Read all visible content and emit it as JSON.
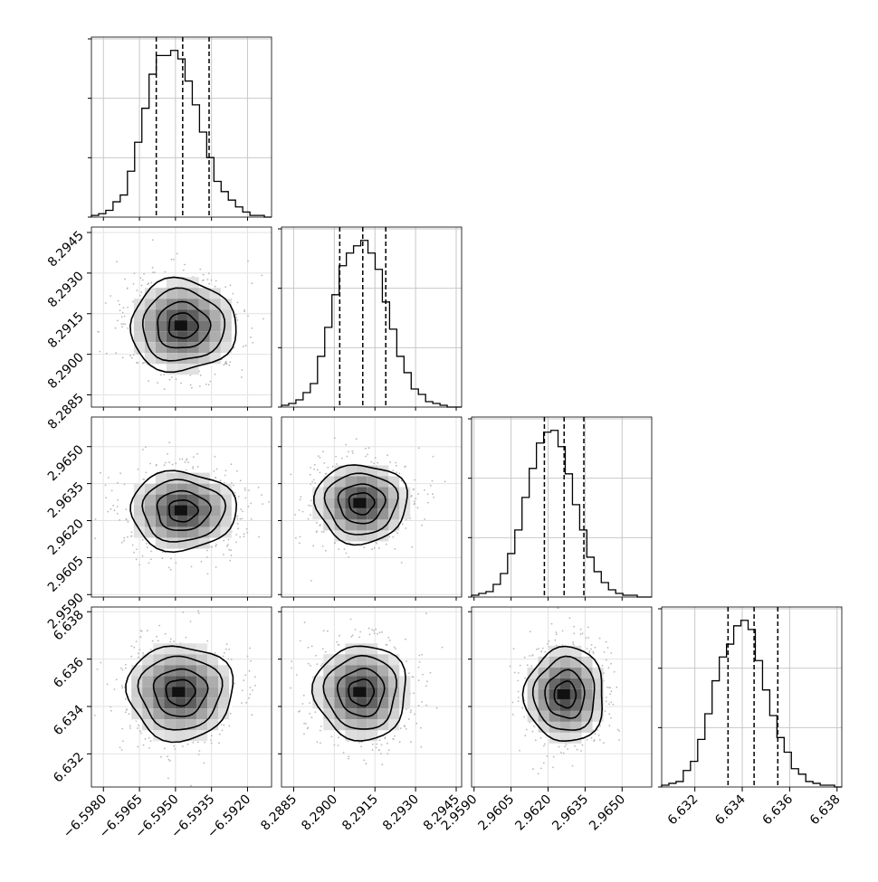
{
  "chart_data": {
    "type": "corner",
    "grid": true,
    "parameters": [
      {
        "range": [
          -6.5985,
          -6.591
        ],
        "ticks": [
          -6.598,
          -6.5965,
          -6.595,
          -6.5935,
          -6.592
        ],
        "tick_labels": [
          "−6.5980",
          "−6.5965",
          "−6.5950",
          "−6.5935",
          "−6.5920"
        ],
        "quantiles": [
          -6.5958,
          -6.5947,
          -6.5936
        ],
        "mean": -6.5947,
        "sd": 0.0011,
        "hist_counts": [
          1,
          2,
          4,
          9,
          13,
          27,
          44,
          64,
          84,
          95,
          95,
          98,
          93,
          80,
          66,
          50,
          35,
          21,
          15,
          10,
          6,
          3,
          1,
          1,
          0
        ]
      },
      {
        "range": [
          8.28805,
          8.2947
        ],
        "ticks": [
          8.2885,
          8.29,
          8.2915,
          8.293,
          8.2945
        ],
        "tick_labels": [
          "8.2885",
          "8.2900",
          "8.2915",
          "8.2930",
          "8.2945"
        ],
        "quantiles": [
          8.2902,
          8.29105,
          8.2919
        ],
        "mean": 8.29105,
        "sd": 0.00085,
        "hist_counts": [
          1,
          2,
          4,
          8,
          13,
          28,
          44,
          62,
          78,
          85,
          89,
          92,
          85,
          76,
          58,
          43,
          28,
          19,
          10,
          7,
          3,
          2,
          1,
          0,
          0
        ]
      },
      {
        "range": [
          2.9589,
          2.9662
        ],
        "ticks": [
          2.959,
          2.9605,
          2.962,
          2.9635,
          2.965
        ],
        "tick_labels": [
          "2.9590",
          "2.9605",
          "2.9620",
          "2.9635",
          "2.9650"
        ],
        "quantiles": [
          2.96185,
          2.96265,
          2.96345
        ],
        "mean": 2.96265,
        "sd": 0.0008,
        "hist_counts": [
          1,
          2,
          3,
          7,
          13,
          24,
          37,
          55,
          71,
          85,
          91,
          92,
          83,
          68,
          51,
          37,
          22,
          14,
          8,
          4,
          2,
          1,
          1,
          0,
          0
        ]
      },
      {
        "range": [
          6.6306,
          6.6382
        ],
        "ticks": [
          6.632,
          6.634,
          6.636,
          6.638
        ],
        "tick_labels": [
          "6.632",
          "6.634",
          "6.636",
          "6.638"
        ],
        "quantiles": [
          6.6334,
          6.6345,
          6.6355
        ],
        "mean": 6.6345,
        "sd": 0.001,
        "hist_counts": [
          1,
          2,
          3,
          9,
          14,
          26,
          40,
          58,
          71,
          78,
          88,
          91,
          86,
          69,
          53,
          39,
          27,
          19,
          10,
          7,
          3,
          2,
          1,
          1,
          0
        ]
      }
    ],
    "pair_peaks": {
      "1-0": [
        -6.5947,
        8.29105
      ],
      "2-0": [
        -6.5947,
        2.9624
      ],
      "2-1": [
        8.291,
        2.9627
      ],
      "3-0": [
        -6.5948,
        6.6346
      ],
      "3-1": [
        8.291,
        6.6346
      ],
      "3-2": [
        2.9627,
        6.6345
      ]
    }
  }
}
